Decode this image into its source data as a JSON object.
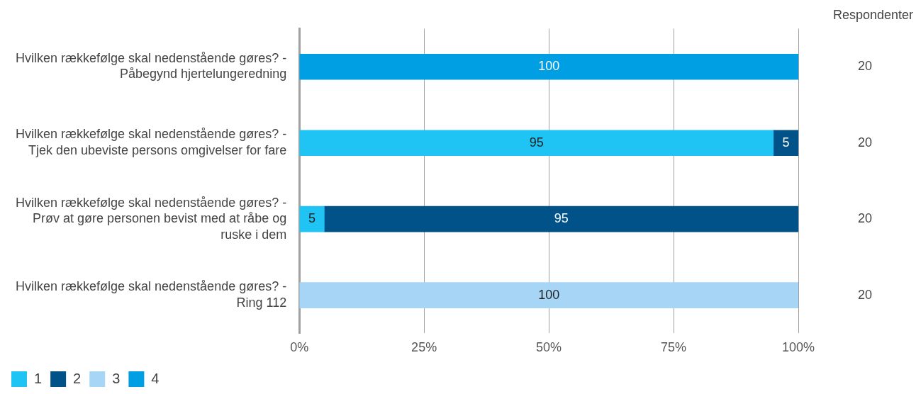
{
  "chart_data": {
    "type": "bar",
    "orientation": "horizontal",
    "stacked": true,
    "categories": [
      "Hvilken rækkefølge skal nedenstående gøres? - Påbegynd hjertelungeredning",
      "Hvilken rækkefølge skal nedenstående gøres? - Tjek den ubeviste persons omgivelser for fare",
      "Hvilken rækkefølge skal nedenstående gøres? - Prøv at gøre personen bevist med at råbe og ruske i dem",
      "Hvilken rækkefølge skal nedenstående gøres? - Ring 112"
    ],
    "series": [
      {
        "name": "1",
        "color": "#20c4f4",
        "values": [
          null,
          95,
          5,
          null
        ]
      },
      {
        "name": "2",
        "color": "#005288",
        "values": [
          null,
          5,
          95,
          null
        ]
      },
      {
        "name": "3",
        "color": "#a7d5f6",
        "values": [
          null,
          null,
          null,
          100
        ]
      },
      {
        "name": "4",
        "color": "#009fe3",
        "values": [
          100,
          null,
          null,
          null
        ]
      }
    ],
    "xlim": [
      0,
      100
    ],
    "xticks": [
      {
        "value": 0,
        "label": "0%"
      },
      {
        "value": 25,
        "label": "25%"
      },
      {
        "value": 50,
        "label": "50%"
      },
      {
        "value": 75,
        "label": "75%"
      },
      {
        "value": 100,
        "label": "100%"
      }
    ],
    "grid": "x",
    "legend": "bottom left",
    "data_labels": true,
    "annotations": [
      "Respondenter",
      "20",
      "20",
      "20",
      "20"
    ]
  }
}
